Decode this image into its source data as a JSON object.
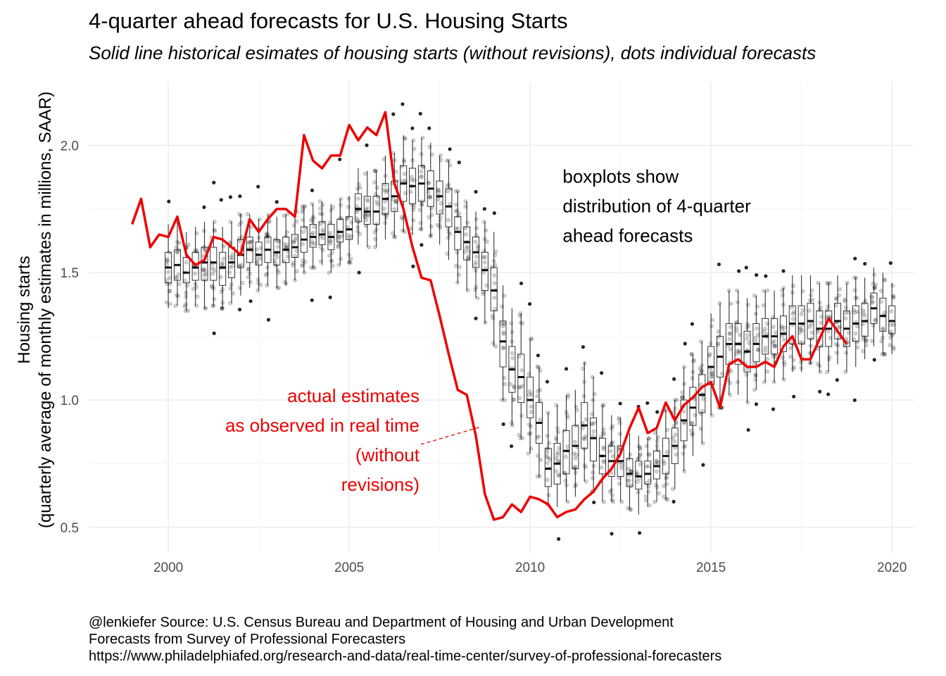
{
  "chart_data": {
    "type": "line",
    "title": "4-quarter ahead forecasts for U.S. Housing Starts",
    "subtitle": "Solid line historical esimates of housing starts (without revisions), dots individual forecasts",
    "xlabel": "",
    "ylabel_line1": "Housing starts",
    "ylabel_line2": "(quarterly average of monthly estimates in millions, SAAR)",
    "xlim": [
      1997.8,
      2020.6
    ],
    "ylim": [
      0.4,
      2.25
    ],
    "x_ticks": [
      2000,
      2005,
      2010,
      2015,
      2020
    ],
    "x_tick_labels": [
      "2000",
      "2005",
      "2010",
      "2015",
      "2020"
    ],
    "y_ticks": [
      0.5,
      1.0,
      1.5,
      2.0
    ],
    "y_tick_labels": [
      "0.5",
      "1.0",
      "1.5",
      "2.0"
    ],
    "grid": true,
    "colors": {
      "actual": "#ee0000",
      "box": "#333333",
      "point": "#000000",
      "grid": "#ebebeb"
    },
    "series": [
      {
        "name": "actual estimates",
        "x": [
          1999.0,
          1999.25,
          1999.5,
          1999.75,
          2000.0,
          2000.25,
          2000.5,
          2000.75,
          2001.0,
          2001.25,
          2001.5,
          2001.75,
          2002.0,
          2002.25,
          2002.5,
          2002.75,
          2003.0,
          2003.25,
          2003.5,
          2003.75,
          2004.0,
          2004.25,
          2004.5,
          2004.75,
          2005.0,
          2005.25,
          2005.5,
          2005.75,
          2006.0,
          2006.25,
          2006.5,
          2006.75,
          2007.0,
          2007.25,
          2007.5,
          2007.75,
          2008.0,
          2008.25,
          2008.5,
          2008.75,
          2009.0,
          2009.25,
          2009.5,
          2009.75,
          2010.0,
          2010.25,
          2010.5,
          2010.75,
          2011.0,
          2011.25,
          2011.5,
          2011.75,
          2012.0,
          2012.25,
          2012.5,
          2012.75,
          2013.0,
          2013.25,
          2013.5,
          2013.75,
          2014.0,
          2014.25,
          2014.5,
          2014.75,
          2015.0,
          2015.25,
          2015.5,
          2015.75,
          2016.0,
          2016.25,
          2016.5,
          2016.75,
          2017.0,
          2017.25,
          2017.5,
          2017.75,
          2018.0,
          2018.25,
          2018.5,
          2018.75
        ],
        "values": [
          1.69,
          1.79,
          1.6,
          1.65,
          1.64,
          1.72,
          1.57,
          1.53,
          1.55,
          1.64,
          1.63,
          1.6,
          1.57,
          1.71,
          1.66,
          1.71,
          1.75,
          1.75,
          1.72,
          2.04,
          1.94,
          1.91,
          1.96,
          1.96,
          2.08,
          2.02,
          2.07,
          2.04,
          2.13,
          1.85,
          1.75,
          1.6,
          1.48,
          1.47,
          1.33,
          1.18,
          1.04,
          1.02,
          0.86,
          0.63,
          0.53,
          0.54,
          0.59,
          0.56,
          0.62,
          0.61,
          0.59,
          0.54,
          0.56,
          0.57,
          0.61,
          0.64,
          0.69,
          0.73,
          0.79,
          0.89,
          0.97,
          0.87,
          0.89,
          0.99,
          0.92,
          0.98,
          1.01,
          1.05,
          1.07,
          0.97,
          1.14,
          1.16,
          1.13,
          1.13,
          1.15,
          1.13,
          1.21,
          1.25,
          1.16,
          1.16,
          1.24,
          1.32,
          1.27,
          1.22
        ]
      }
    ],
    "forecast_boxes": {
      "x": [
        2000.0,
        2000.25,
        2000.5,
        2000.75,
        2001.0,
        2001.25,
        2001.5,
        2001.75,
        2002.0,
        2002.25,
        2002.5,
        2002.75,
        2003.0,
        2003.25,
        2003.5,
        2003.75,
        2004.0,
        2004.25,
        2004.5,
        2004.75,
        2005.0,
        2005.25,
        2005.5,
        2005.75,
        2006.0,
        2006.25,
        2006.5,
        2006.75,
        2007.0,
        2007.25,
        2007.5,
        2007.75,
        2008.0,
        2008.25,
        2008.5,
        2008.75,
        2009.0,
        2009.25,
        2009.5,
        2009.75,
        2010.0,
        2010.25,
        2010.5,
        2010.75,
        2011.0,
        2011.25,
        2011.5,
        2011.75,
        2012.0,
        2012.25,
        2012.5,
        2012.75,
        2013.0,
        2013.25,
        2013.5,
        2013.75,
        2014.0,
        2014.25,
        2014.5,
        2014.75,
        2015.0,
        2015.25,
        2015.5,
        2015.75,
        2016.0,
        2016.25,
        2016.5,
        2016.75,
        2017.0,
        2017.25,
        2017.5,
        2017.75,
        2018.0,
        2018.25,
        2018.5,
        2018.75,
        2019.0,
        2019.25,
        2019.5,
        2019.75,
        2020.0
      ],
      "median": [
        1.52,
        1.53,
        1.5,
        1.52,
        1.54,
        1.54,
        1.52,
        1.54,
        1.57,
        1.59,
        1.57,
        1.59,
        1.58,
        1.59,
        1.6,
        1.63,
        1.64,
        1.65,
        1.64,
        1.66,
        1.67,
        1.75,
        1.74,
        1.74,
        1.79,
        1.8,
        1.85,
        1.84,
        1.85,
        1.83,
        1.8,
        1.76,
        1.66,
        1.62,
        1.58,
        1.51,
        1.43,
        1.23,
        1.12,
        1.09,
        1.0,
        0.91,
        0.73,
        0.75,
        0.8,
        0.82,
        0.9,
        0.85,
        0.78,
        0.76,
        0.76,
        0.71,
        0.7,
        0.71,
        0.74,
        0.78,
        0.82,
        0.92,
        0.97,
        1.02,
        1.13,
        1.17,
        1.22,
        1.22,
        1.19,
        1.22,
        1.25,
        1.25,
        1.26,
        1.3,
        1.3,
        1.31,
        1.28,
        1.28,
        1.31,
        1.28,
        1.3,
        1.31,
        1.36,
        1.33,
        1.31
      ],
      "q1": [
        1.46,
        1.47,
        1.46,
        1.47,
        1.47,
        1.47,
        1.45,
        1.48,
        1.52,
        1.54,
        1.53,
        1.54,
        1.53,
        1.54,
        1.56,
        1.58,
        1.6,
        1.61,
        1.59,
        1.62,
        1.63,
        1.7,
        1.69,
        1.69,
        1.73,
        1.74,
        1.78,
        1.77,
        1.78,
        1.76,
        1.73,
        1.68,
        1.59,
        1.55,
        1.52,
        1.43,
        1.35,
        1.13,
        1.03,
        0.99,
        0.93,
        0.83,
        0.66,
        0.67,
        0.71,
        0.73,
        0.81,
        0.76,
        0.71,
        0.7,
        0.7,
        0.66,
        0.65,
        0.67,
        0.69,
        0.71,
        0.75,
        0.84,
        0.9,
        0.95,
        1.06,
        1.09,
        1.14,
        1.14,
        1.11,
        1.15,
        1.18,
        1.18,
        1.19,
        1.22,
        1.22,
        1.24,
        1.21,
        1.21,
        1.24,
        1.21,
        1.23,
        1.25,
        1.3,
        1.27,
        1.26
      ],
      "q3": [
        1.58,
        1.59,
        1.56,
        1.58,
        1.6,
        1.6,
        1.58,
        1.6,
        1.63,
        1.64,
        1.62,
        1.64,
        1.63,
        1.64,
        1.65,
        1.68,
        1.69,
        1.7,
        1.69,
        1.71,
        1.72,
        1.81,
        1.8,
        1.8,
        1.85,
        1.86,
        1.92,
        1.91,
        1.92,
        1.9,
        1.86,
        1.83,
        1.72,
        1.68,
        1.64,
        1.58,
        1.52,
        1.31,
        1.21,
        1.18,
        1.09,
        0.99,
        0.81,
        0.83,
        0.88,
        0.9,
        0.99,
        0.93,
        0.85,
        0.82,
        0.82,
        0.77,
        0.76,
        0.76,
        0.8,
        0.85,
        0.89,
        1.0,
        1.05,
        1.1,
        1.21,
        1.25,
        1.3,
        1.3,
        1.27,
        1.3,
        1.32,
        1.32,
        1.33,
        1.37,
        1.37,
        1.38,
        1.35,
        1.35,
        1.38,
        1.35,
        1.37,
        1.38,
        1.42,
        1.4,
        1.37
      ],
      "lower": [
        1.36,
        1.37,
        1.35,
        1.37,
        1.36,
        1.37,
        1.36,
        1.38,
        1.41,
        1.44,
        1.43,
        1.45,
        1.44,
        1.45,
        1.47,
        1.5,
        1.52,
        1.53,
        1.5,
        1.53,
        1.54,
        1.61,
        1.6,
        1.6,
        1.63,
        1.64,
        1.66,
        1.65,
        1.67,
        1.64,
        1.61,
        1.55,
        1.46,
        1.43,
        1.4,
        1.3,
        1.21,
        1.0,
        0.9,
        0.85,
        0.79,
        0.7,
        0.58,
        0.58,
        0.6,
        0.62,
        0.68,
        0.64,
        0.6,
        0.6,
        0.6,
        0.57,
        0.55,
        0.58,
        0.6,
        0.61,
        0.65,
        0.72,
        0.78,
        0.83,
        0.94,
        0.97,
        1.02,
        1.02,
        0.99,
        1.04,
        1.07,
        1.07,
        1.08,
        1.11,
        1.11,
        1.14,
        1.11,
        1.11,
        1.14,
        1.11,
        1.13,
        1.16,
        1.21,
        1.18,
        1.18
      ],
      "upper": [
        1.69,
        1.7,
        1.66,
        1.68,
        1.7,
        1.7,
        1.68,
        1.7,
        1.73,
        1.73,
        1.71,
        1.73,
        1.72,
        1.73,
        1.74,
        1.76,
        1.77,
        1.78,
        1.77,
        1.79,
        1.8,
        1.91,
        1.9,
        1.9,
        1.96,
        1.97,
        2.04,
        2.02,
        2.03,
        2.01,
        1.96,
        1.94,
        1.82,
        1.78,
        1.74,
        1.7,
        1.66,
        1.45,
        1.36,
        1.34,
        1.24,
        1.13,
        0.95,
        0.98,
        1.02,
        1.04,
        1.15,
        1.09,
        0.98,
        0.94,
        0.93,
        0.87,
        0.86,
        0.85,
        0.89,
        0.96,
        1.0,
        1.13,
        1.18,
        1.23,
        1.34,
        1.38,
        1.43,
        1.43,
        1.4,
        1.41,
        1.43,
        1.43,
        1.44,
        1.49,
        1.49,
        1.49,
        1.46,
        1.46,
        1.49,
        1.46,
        1.48,
        1.48,
        1.52,
        1.5,
        1.46
      ]
    },
    "annotations": [
      {
        "lines": [
          "boxplots show",
          "distribution of 4-quarter",
          "ahead forecasts"
        ],
        "x": 2010.9,
        "y": 1.92,
        "color": "#000000"
      },
      {
        "lines": [
          "actual estimates",
          "as observed in real time",
          "(without",
          "revisions)"
        ],
        "x": 2006.9,
        "y": 1.03,
        "color": "#ee0000",
        "align": "right"
      }
    ],
    "caption": [
      "@lenkiefer Source: U.S. Census Bureau and Department of Housing and Urban Development",
      "Forecasts from Survey of Professional Forecasters",
      "https://www.philadelphiafed.org/research-and-data/real-time-center/survey-of-professional-forecasters"
    ]
  }
}
